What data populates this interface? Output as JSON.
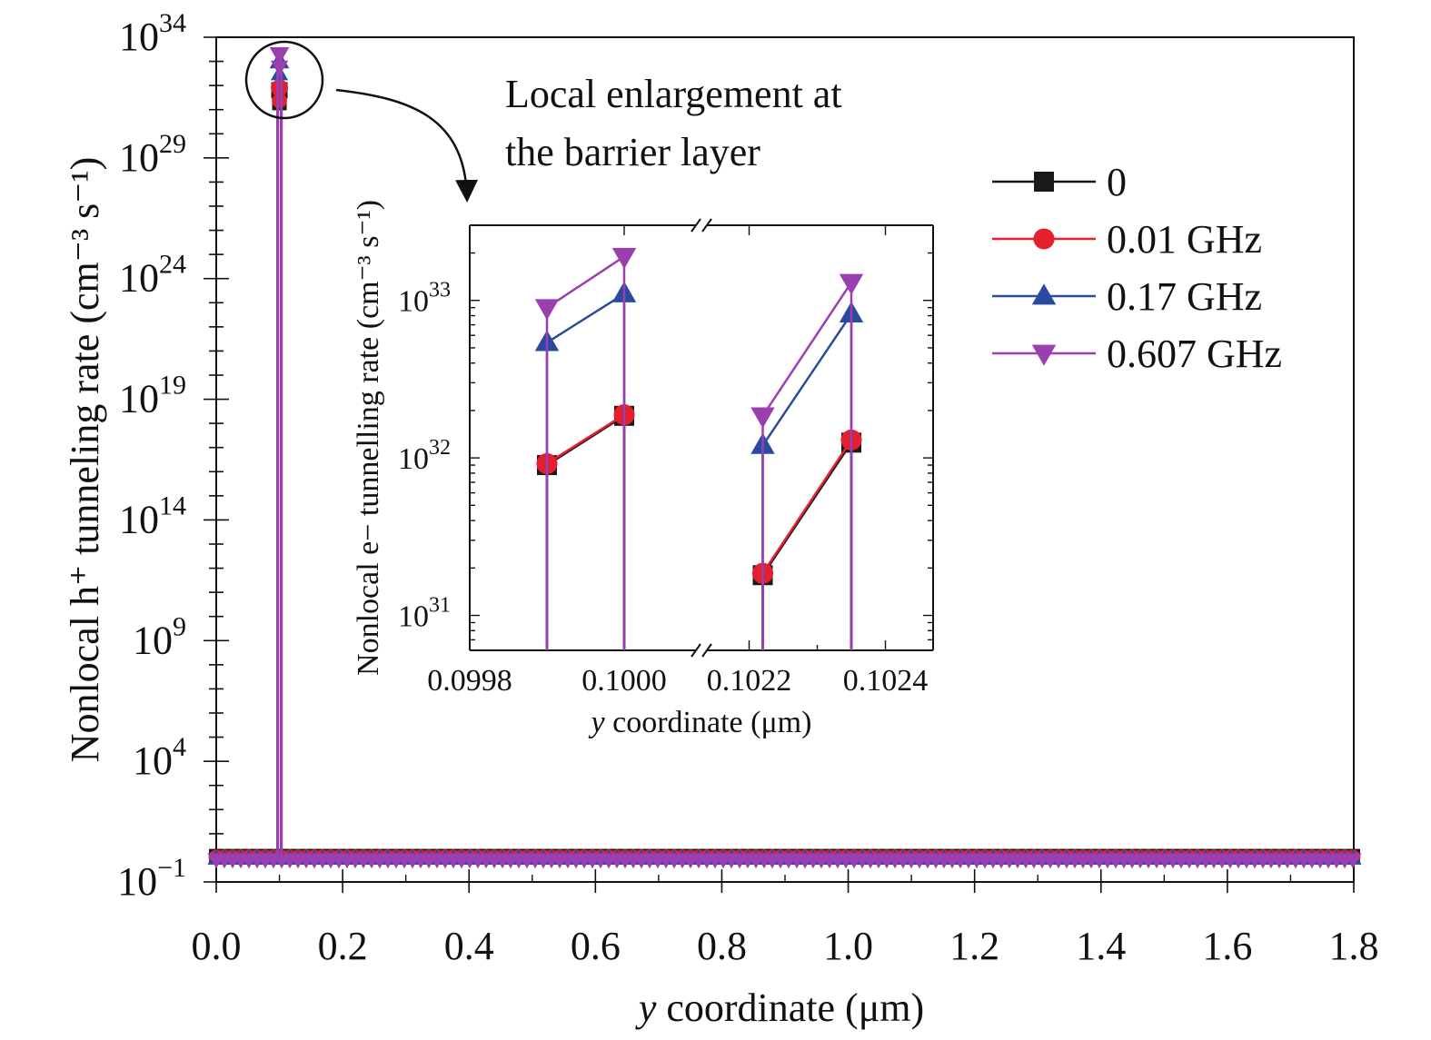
{
  "colors": {
    "s0": "#1a1a1a",
    "s1": "#e5202e",
    "s2": "#2a4a9f",
    "s3": "#9b3fb0",
    "axis": "#111111"
  },
  "annotation": {
    "line1": "Local enlargement at",
    "line2": "the barrier layer"
  },
  "chart_data": [
    {
      "type": "line",
      "xlabel_italic": "y",
      "xlabel_rest": " coordinate (μm)",
      "ylabel": "Nonlocal h⁺ tunneling rate (cm⁻³ s⁻¹)",
      "xlim": [
        0.0,
        1.8
      ],
      "ylim_log10": [
        -1,
        34
      ],
      "yscale": "log",
      "x_tick_labels": [
        "0.0",
        "0.2",
        "0.4",
        "0.6",
        "0.8",
        "1.0",
        "1.2",
        "1.4",
        "1.6",
        "1.8"
      ],
      "y_ticks": [
        {
          "base": "10",
          "exp": "34",
          "value": 34
        },
        {
          "base": "10",
          "exp": "29",
          "value": 29
        },
        {
          "base": "10",
          "exp": "24",
          "value": 24
        },
        {
          "base": "10",
          "exp": "19",
          "value": 19
        },
        {
          "base": "10",
          "exp": "14",
          "value": 14
        },
        {
          "base": "10",
          "exp": "9",
          "value": 9
        },
        {
          "base": "10",
          "exp": "4",
          "value": 4
        },
        {
          "base": "10",
          "exp": "−1",
          "value": -1
        }
      ],
      "legend_position": "right",
      "series": [
        {
          "name": "0",
          "marker": "square",
          "peak_log10": 31.8
        },
        {
          "name": "0.01 GHz",
          "marker": "circle",
          "peak_log10": 31.9
        },
        {
          "name": "0.17 GHz",
          "marker": "triangle-up",
          "peak_log10": 33.0
        },
        {
          "name": "0.607 GHz",
          "marker": "triangle-down",
          "peak_log10": 33.3
        }
      ],
      "spike_x": 0.1,
      "baseline_log10": 0.0
    },
    {
      "type": "line",
      "inset": true,
      "xlabel_italic": "y",
      "xlabel_rest": " coordinate (μm)",
      "ylabel": "Nonlocal e− tunnelling rate (cm⁻³ s⁻¹)",
      "yscale": "log",
      "ylim": [
        6e+30,
        3e+33
      ],
      "x_broken_axis": true,
      "x_segments": [
        [
          0.0998,
          0.1001
        ],
        [
          0.10213,
          0.10247
        ]
      ],
      "x_tick_labels": [
        "0.0998",
        "0.1000",
        "0.1022",
        "0.1024"
      ],
      "y_ticks": [
        {
          "base": "10",
          "exp": "33",
          "value": 1e+33
        },
        {
          "base": "10",
          "exp": "32",
          "value": 1e+32
        },
        {
          "base": "10",
          "exp": "31",
          "value": 1e+31
        }
      ],
      "series": [
        {
          "name": "0",
          "x": [
            0.0999,
            0.1,
            0.10222,
            0.10235
          ],
          "values": [
            9e+31,
            1.85e+32,
            1.8e+31,
            1.25e+32
          ]
        },
        {
          "name": "0.01 GHz",
          "x": [
            0.0999,
            0.1,
            0.10222,
            0.10235
          ],
          "values": [
            9.2e+31,
            1.88e+32,
            1.85e+31,
            1.3e+32
          ]
        },
        {
          "name": "0.17 GHz",
          "x": [
            0.0999,
            0.1,
            0.10222,
            0.10235
          ],
          "values": [
            5.4e+32,
            1.1e+33,
            1.2e+32,
            8.2e+32
          ]
        },
        {
          "name": "0.607 GHz",
          "x": [
            0.0999,
            0.1,
            0.10222,
            0.10235
          ],
          "values": [
            9e+32,
            1.9e+33,
            1.85e+32,
            1.3e+33
          ]
        }
      ]
    }
  ]
}
